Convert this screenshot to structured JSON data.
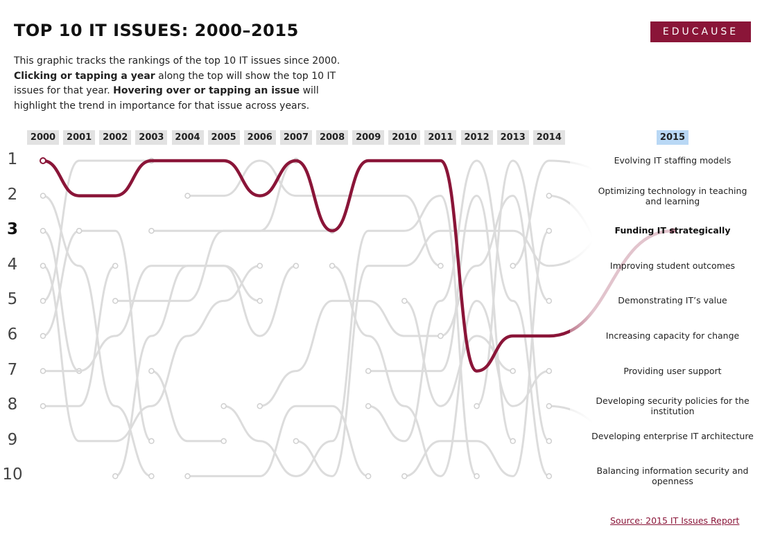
{
  "header": {
    "title": "TOP 10 IT ISSUES: 2000–2015",
    "logo_text": "EDUCAUSE",
    "intro_1": "This graphic tracks the rankings of the top 10 IT issues since 2000.",
    "intro_2_bold": "Clicking or tapping a year",
    "intro_3": " along the top will show the top 10 IT issues for that year. ",
    "intro_4_bold": "Hovering over or tapping an issue",
    "intro_5": " will highlight the trend in importance for that issue across years."
  },
  "source_link": "Source: 2015 IT Issues Report",
  "colors": {
    "highlight": "#8a1538",
    "background_lines": "#dcdcdc",
    "selected_year": "#b9d8f5",
    "year_button": "#e2e2e2"
  },
  "chart_data": {
    "type": "line",
    "subtype": "bump chart of rankings",
    "years": [
      "2000",
      "2001",
      "2002",
      "2003",
      "2004",
      "2005",
      "2006",
      "2007",
      "2008",
      "2009",
      "2010",
      "2011",
      "2012",
      "2013",
      "2014",
      "2015"
    ],
    "selected_year": "2015",
    "ranks": [
      "1",
      "2",
      "3",
      "4",
      "5",
      "6",
      "7",
      "8",
      "9",
      "10"
    ],
    "selected_rank": "3",
    "y_axis": "rank, 1 at top to 10 at bottom",
    "issues_2015": [
      "Evolving IT staffing models",
      "Optimizing technology in teaching and learning",
      "Funding IT strategically",
      "Improving student outcomes",
      "Demonstrating IT’s value",
      "Increasing capacity for change",
      "Providing user support",
      "Developing security policies for the institution",
      "Developing enterprise IT architecture",
      "Balancing information security and openness"
    ],
    "highlighted_series": {
      "name": "Funding IT strategically",
      "x": [
        "2000",
        "2001",
        "2002",
        "2003",
        "2004",
        "2005",
        "2006",
        "2007",
        "2008",
        "2009",
        "2010",
        "2011",
        "2012",
        "2013",
        "2014",
        "2015"
      ],
      "y": [
        1,
        2,
        2,
        1,
        1,
        1,
        2,
        1,
        3,
        1,
        1,
        1,
        7,
        6,
        6,
        3
      ]
    },
    "background_series": [
      {
        "x": [
          "2000",
          "2001",
          "2002",
          "2003",
          "2004",
          "2005",
          "2006"
        ],
        "y": [
          4,
          9,
          9,
          8,
          6,
          5,
          4
        ]
      },
      {
        "x": [
          "2000",
          "2001",
          "2002",
          "2003"
        ],
        "y": [
          5,
          1,
          1,
          1
        ]
      },
      {
        "x": [
          "2000",
          "2001",
          "2002",
          "2003"
        ],
        "y": [
          2,
          4,
          8,
          10
        ]
      },
      {
        "x": [
          "2000",
          "2001"
        ],
        "y": [
          3,
          7
        ]
      },
      {
        "x": [
          "2001",
          "2002",
          "2003"
        ],
        "y": [
          3,
          3,
          9
        ]
      },
      {
        "x": [
          "2000",
          "2001"
        ],
        "y": [
          6,
          3
        ]
      },
      {
        "x": [
          "2000",
          "2001",
          "2002",
          "2003",
          "2004",
          "2005",
          "2006",
          "2007"
        ],
        "y": [
          7,
          7,
          6,
          4,
          4,
          4,
          6,
          4
        ]
      },
      {
        "x": [
          "2000",
          "2001",
          "2002"
        ],
        "y": [
          8,
          8,
          4
        ]
      },
      {
        "x": [
          "2002",
          "2003",
          "2004",
          "2005",
          "2006",
          "2007",
          "2008"
        ],
        "y": [
          5,
          5,
          5,
          3,
          3,
          3,
          3
        ]
      },
      {
        "x": [
          "2003",
          "2004",
          "2005",
          "2006",
          "2007"
        ],
        "y": [
          3,
          3,
          3,
          3,
          1
        ]
      },
      {
        "x": [
          "2002",
          "2003",
          "2004",
          "2005",
          "2006"
        ],
        "y": [
          10,
          6,
          4,
          4,
          5
        ]
      },
      {
        "x": [
          "2003",
          "2004",
          "2005"
        ],
        "y": [
          7,
          9,
          9
        ]
      },
      {
        "x": [
          "2004",
          "2005",
          "2006",
          "2007",
          "2008",
          "2009"
        ],
        "y": [
          10,
          10,
          10,
          8,
          8,
          10
        ]
      },
      {
        "x": [
          "2004",
          "2005",
          "2006",
          "2007",
          "2008",
          "2009",
          "2010",
          "2011"
        ],
        "y": [
          2,
          2,
          1,
          2,
          2,
          2,
          2,
          4
        ]
      },
      {
        "x": [
          "2005",
          "2006",
          "2007",
          "2008",
          "2009",
          "2010",
          "2011",
          "2012"
        ],
        "y": [
          8,
          9,
          10,
          9,
          3,
          3,
          2,
          10
        ]
      },
      {
        "x": [
          "2006",
          "2007",
          "2008",
          "2009",
          "2010",
          "2011"
        ],
        "y": [
          8,
          7,
          5,
          5,
          6,
          6
        ]
      },
      {
        "x": [
          "2007",
          "2008",
          "2009",
          "2010",
          "2011",
          "2012",
          "2013",
          "2014",
          "2015"
        ],
        "y": [
          9,
          10,
          4,
          4,
          3,
          3,
          3,
          4,
          1
        ]
      },
      {
        "x": [
          "2008",
          "2009",
          "2010",
          "2011",
          "2012",
          "2013",
          "2014"
        ],
        "y": [
          4,
          6,
          8,
          10,
          5,
          8,
          7
        ]
      },
      {
        "x": [
          "2009",
          "2010",
          "2011",
          "2012",
          "2013"
        ],
        "y": [
          7,
          7,
          7,
          2,
          9
        ]
      },
      {
        "x": [
          "2009",
          "2010",
          "2011",
          "2012",
          "2013",
          "2014"
        ],
        "y": [
          8,
          9,
          5,
          1,
          5,
          10
        ]
      },
      {
        "x": [
          "2010",
          "2011",
          "2012",
          "2013",
          "2014"
        ],
        "y": [
          10,
          9,
          9,
          10,
          3
        ]
      },
      {
        "x": [
          "2010",
          "2011",
          "2012",
          "2013"
        ],
        "y": [
          5,
          8,
          6,
          7
        ]
      },
      {
        "x": [
          "2011",
          "2012",
          "2013",
          "2014"
        ],
        "y": [
          6,
          4,
          2,
          9
        ]
      },
      {
        "x": [
          "2012",
          "2013",
          "2014"
        ],
        "y": [
          8,
          1,
          5
        ]
      },
      {
        "x": [
          "2013",
          "2014",
          "2015"
        ],
        "y": [
          4,
          1,
          2
        ]
      },
      {
        "x": [
          "2014",
          "2015"
        ],
        "y": [
          2,
          7
        ]
      },
      {
        "x": [
          "2014",
          "2015"
        ],
        "y": [
          8,
          10
        ]
      }
    ]
  }
}
